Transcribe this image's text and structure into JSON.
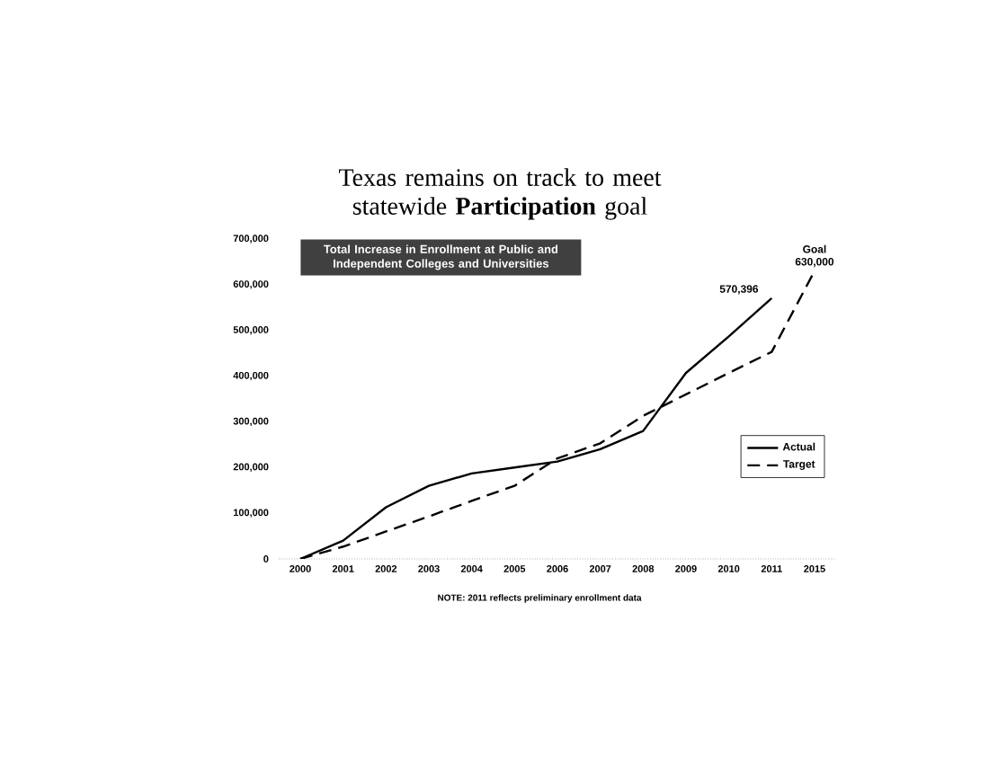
{
  "chart_data": {
    "type": "line",
    "title": "Texas remains on track to meet statewide **Participation** goal",
    "categories": [
      "2000",
      "2001",
      "2002",
      "2003",
      "2004",
      "2005",
      "2006",
      "2007",
      "2008",
      "2009",
      "2010",
      "2011",
      "2015"
    ],
    "series": [
      {
        "name": "Actual",
        "color": "#000000",
        "line_style": "solid",
        "values": [
          0,
          40000,
          113000,
          160000,
          187000,
          200000,
          213000,
          240000,
          280000,
          407000,
          487000,
          570396,
          null
        ]
      },
      {
        "name": "Target",
        "color": "#000000",
        "line_style": "dashed",
        "values": [
          0,
          27000,
          60000,
          93000,
          127000,
          160000,
          220000,
          253000,
          313000,
          360000,
          407000,
          453000,
          630000
        ]
      }
    ],
    "ylim": [
      0,
      700000
    ],
    "yticks": [
      0,
      {
        "value": 100000,
        "label": "100,000"
      },
      {
        "value": 200000,
        "label": "200,000"
      },
      {
        "value": 300000,
        "label": "300,000"
      },
      {
        "value": 400000,
        "label": "400,000"
      },
      {
        "value": 500000,
        "label": "500,000"
      },
      {
        "value": 600000,
        "label": "600,000"
      },
      {
        "value": 700000,
        "label": "700,000"
      }
    ],
    "annotations": [
      "Total Increase in Enrollment at Public and Independent Colleges and Universities",
      {
        "text": "570,396",
        "x": "2011",
        "y": 570396
      },
      {
        "text": "Goal 630,000",
        "x": "2015",
        "y": 630000
      },
      "NOTE: 2011 reflects preliminary enrollment data"
    ],
    "legend": "right",
    "grid": false,
    "marker": "none"
  }
}
